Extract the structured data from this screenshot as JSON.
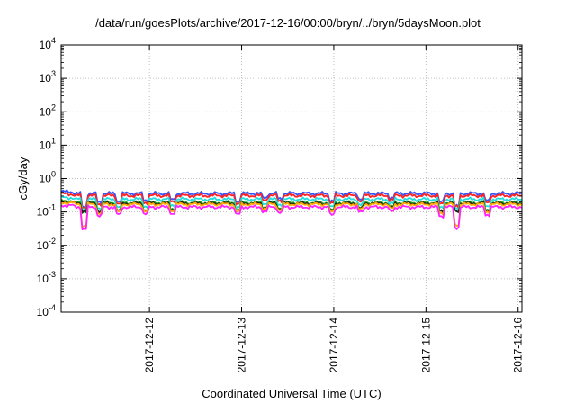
{
  "chart_data": {
    "type": "line",
    "title": "/data/run/goesPlots/archive/2017-12-16/00:00/bryn/../bryn/5daysMoon.plot",
    "xlabel": "Coordinated Universal Time (UTC)",
    "ylabel": "cGy/day",
    "yscale": "log",
    "ylim": [
      0.0001,
      10000
    ],
    "xlim": [
      "2017-12-11T01:00",
      "2017-12-16T01:00"
    ],
    "grid": true,
    "y_ticks": [
      {
        "base": "10",
        "exp": "-4",
        "value": 0.0001
      },
      {
        "base": "10",
        "exp": "-3",
        "value": 0.001
      },
      {
        "base": "10",
        "exp": "-2",
        "value": 0.01
      },
      {
        "base": "10",
        "exp": "-1",
        "value": 0.1
      },
      {
        "base": "10",
        "exp": "0",
        "value": 1
      },
      {
        "base": "10",
        "exp": "1",
        "value": 10
      },
      {
        "base": "10",
        "exp": "2",
        "value": 100
      },
      {
        "base": "10",
        "exp": "3",
        "value": 1000
      },
      {
        "base": "10",
        "exp": "4",
        "value": 10000
      }
    ],
    "x_ticks": [
      {
        "label": "2017-12-12",
        "value": "2017-12-12T00:00"
      },
      {
        "label": "2017-12-13",
        "value": "2017-12-13T00:00"
      },
      {
        "label": "2017-12-14",
        "value": "2017-12-14T00:00"
      },
      {
        "label": "2017-12-15",
        "value": "2017-12-15T00:00"
      },
      {
        "label": "2017-12-16",
        "value": "2017-12-16T00:00"
      }
    ],
    "dips": [
      {
        "t": "2017-12-11T07:00",
        "factor": 0.22
      },
      {
        "t": "2017-12-11T11:00",
        "factor": 0.55
      },
      {
        "t": "2017-12-11T16:00",
        "factor": 0.6
      },
      {
        "t": "2017-12-11T23:00",
        "factor": 0.62
      },
      {
        "t": "2017-12-12T06:00",
        "factor": 0.65
      },
      {
        "t": "2017-12-12T23:00",
        "factor": 0.6
      },
      {
        "t": "2017-12-13T06:00",
        "factor": 0.75
      },
      {
        "t": "2017-12-13T10:00",
        "factor": 0.7
      },
      {
        "t": "2017-12-13T23:30",
        "factor": 0.6
      },
      {
        "t": "2017-12-14T07:00",
        "factor": 0.7
      },
      {
        "t": "2017-12-14T15:00",
        "factor": 0.75
      },
      {
        "t": "2017-12-15T04:00",
        "factor": 0.55
      },
      {
        "t": "2017-12-15T08:00",
        "factor": 0.25
      },
      {
        "t": "2017-12-15T16:00",
        "factor": 0.6
      }
    ],
    "series": [
      {
        "color": "#3355ff",
        "base": 0.36
      },
      {
        "color": "#ff2222",
        "base": 0.31
      },
      {
        "color": "#22dddd",
        "base": 0.24
      },
      {
        "color": "#22aa22",
        "base": 0.19
      },
      {
        "color": "#222222",
        "base": 0.18
      },
      {
        "color": "#ffaa00",
        "base": 0.17
      },
      {
        "color": "#ff22ff",
        "base": 0.14
      }
    ]
  }
}
